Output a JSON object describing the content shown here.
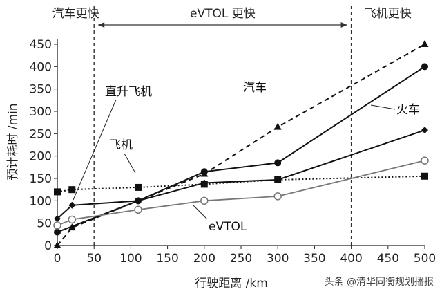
{
  "chart_data": {
    "type": "line",
    "title": "",
    "xlabel": "行驶距离 /km",
    "ylabel": "预计耗时 /min",
    "xlim": [
      0,
      500
    ],
    "ylim": [
      0,
      450
    ],
    "xticks": [
      0,
      50,
      100,
      150,
      200,
      250,
      300,
      350,
      400,
      450,
      500
    ],
    "yticks": [
      0,
      50,
      100,
      150,
      200,
      250,
      300,
      350,
      400,
      450
    ],
    "grid": false,
    "regions": [
      {
        "label": "汽车更快",
        "from": 0,
        "to": 50
      },
      {
        "label": "eVTOL 更快",
        "from": 50,
        "to": 400
      },
      {
        "label": "飞机更快",
        "from": 400,
        "to": 500
      }
    ],
    "boundaries": [
      50,
      400
    ],
    "series": [
      {
        "name": "汽车",
        "marker": "triangle-filled",
        "line": "dashed",
        "color": "#111111",
        "x": [
          0,
          20,
          200,
          300,
          500
        ],
        "y": [
          0,
          40,
          160,
          265,
          450
        ]
      },
      {
        "name": "火车",
        "marker": "circle-filled",
        "line": "solid",
        "color": "#111111",
        "x": [
          0,
          110,
          200,
          300,
          500
        ],
        "y": [
          30,
          100,
          165,
          185,
          400
        ]
      },
      {
        "name": "直升飞机",
        "marker": "diamond-filled",
        "line": "solid",
        "color": "#111111",
        "x": [
          0,
          20,
          110,
          200,
          300,
          500
        ],
        "y": [
          60,
          90,
          100,
          140,
          147,
          258
        ]
      },
      {
        "name": "飞机",
        "marker": "square-filled",
        "line": "dotted",
        "color": "#111111",
        "x": [
          0,
          20,
          110,
          200,
          300,
          500
        ],
        "y": [
          120,
          125,
          130,
          137,
          147,
          155
        ]
      },
      {
        "name": "eVTOL",
        "marker": "circle-open",
        "line": "solid",
        "color": "#777777",
        "x": [
          0,
          20,
          110,
          200,
          300,
          500
        ],
        "y": [
          45,
          58,
          80,
          100,
          110,
          190
        ]
      }
    ]
  },
  "watermark": "头条 @清华同衡规划播报"
}
